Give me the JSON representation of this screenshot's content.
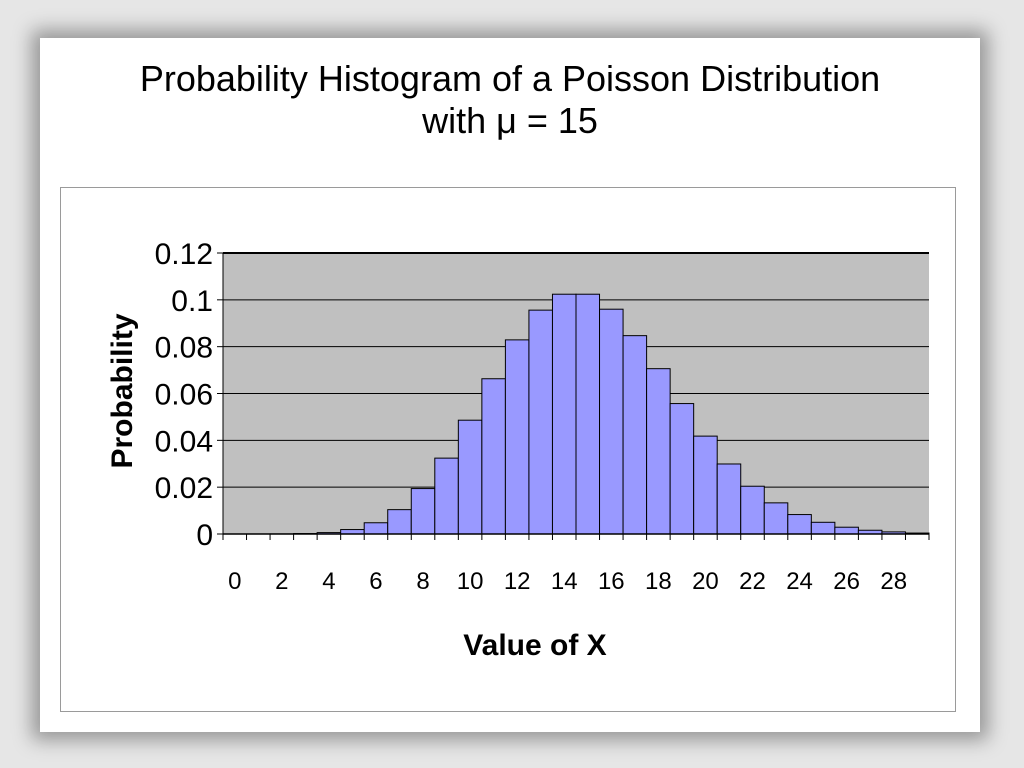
{
  "slide": {
    "title_line1": "Probability Histogram of a Poisson Distribution",
    "title_line2": "with μ = 15"
  },
  "colors": {
    "bar_fill": "#9999ff",
    "bar_stroke": "#000000",
    "plot_background": "#c0c0c0",
    "gridline": "#000000"
  },
  "chart_data": {
    "type": "bar",
    "title": "Probability Histogram of a Poisson Distribution with μ = 15",
    "xlabel": "Value of X",
    "ylabel": "Probability",
    "ylim": [
      0,
      0.12
    ],
    "yticks": [
      0,
      0.02,
      0.04,
      0.06,
      0.08,
      0.1,
      0.12
    ],
    "ytick_labels": [
      "0",
      "0.02",
      "0.04",
      "0.06",
      "0.08",
      "0.1",
      "0.12"
    ],
    "grid": true,
    "legend": "none",
    "categories": [
      0,
      1,
      2,
      3,
      4,
      5,
      6,
      7,
      8,
      9,
      10,
      11,
      12,
      13,
      14,
      15,
      16,
      17,
      18,
      19,
      20,
      21,
      22,
      23,
      24,
      25,
      26,
      27,
      28,
      29
    ],
    "xtick_labels": [
      "0",
      "2",
      "4",
      "6",
      "8",
      "10",
      "12",
      "14",
      "16",
      "18",
      "20",
      "22",
      "24",
      "26",
      "28"
    ],
    "values": [
      3e-07,
      5e-06,
      3e-05,
      0.0002,
      0.0006,
      0.0019,
      0.0048,
      0.0104,
      0.0194,
      0.0324,
      0.0486,
      0.0663,
      0.0829,
      0.0956,
      0.1024,
      0.1024,
      0.096,
      0.0847,
      0.0706,
      0.0557,
      0.0418,
      0.0299,
      0.0204,
      0.0133,
      0.0083,
      0.005,
      0.0029,
      0.0016,
      0.0009,
      0.0004
    ]
  }
}
